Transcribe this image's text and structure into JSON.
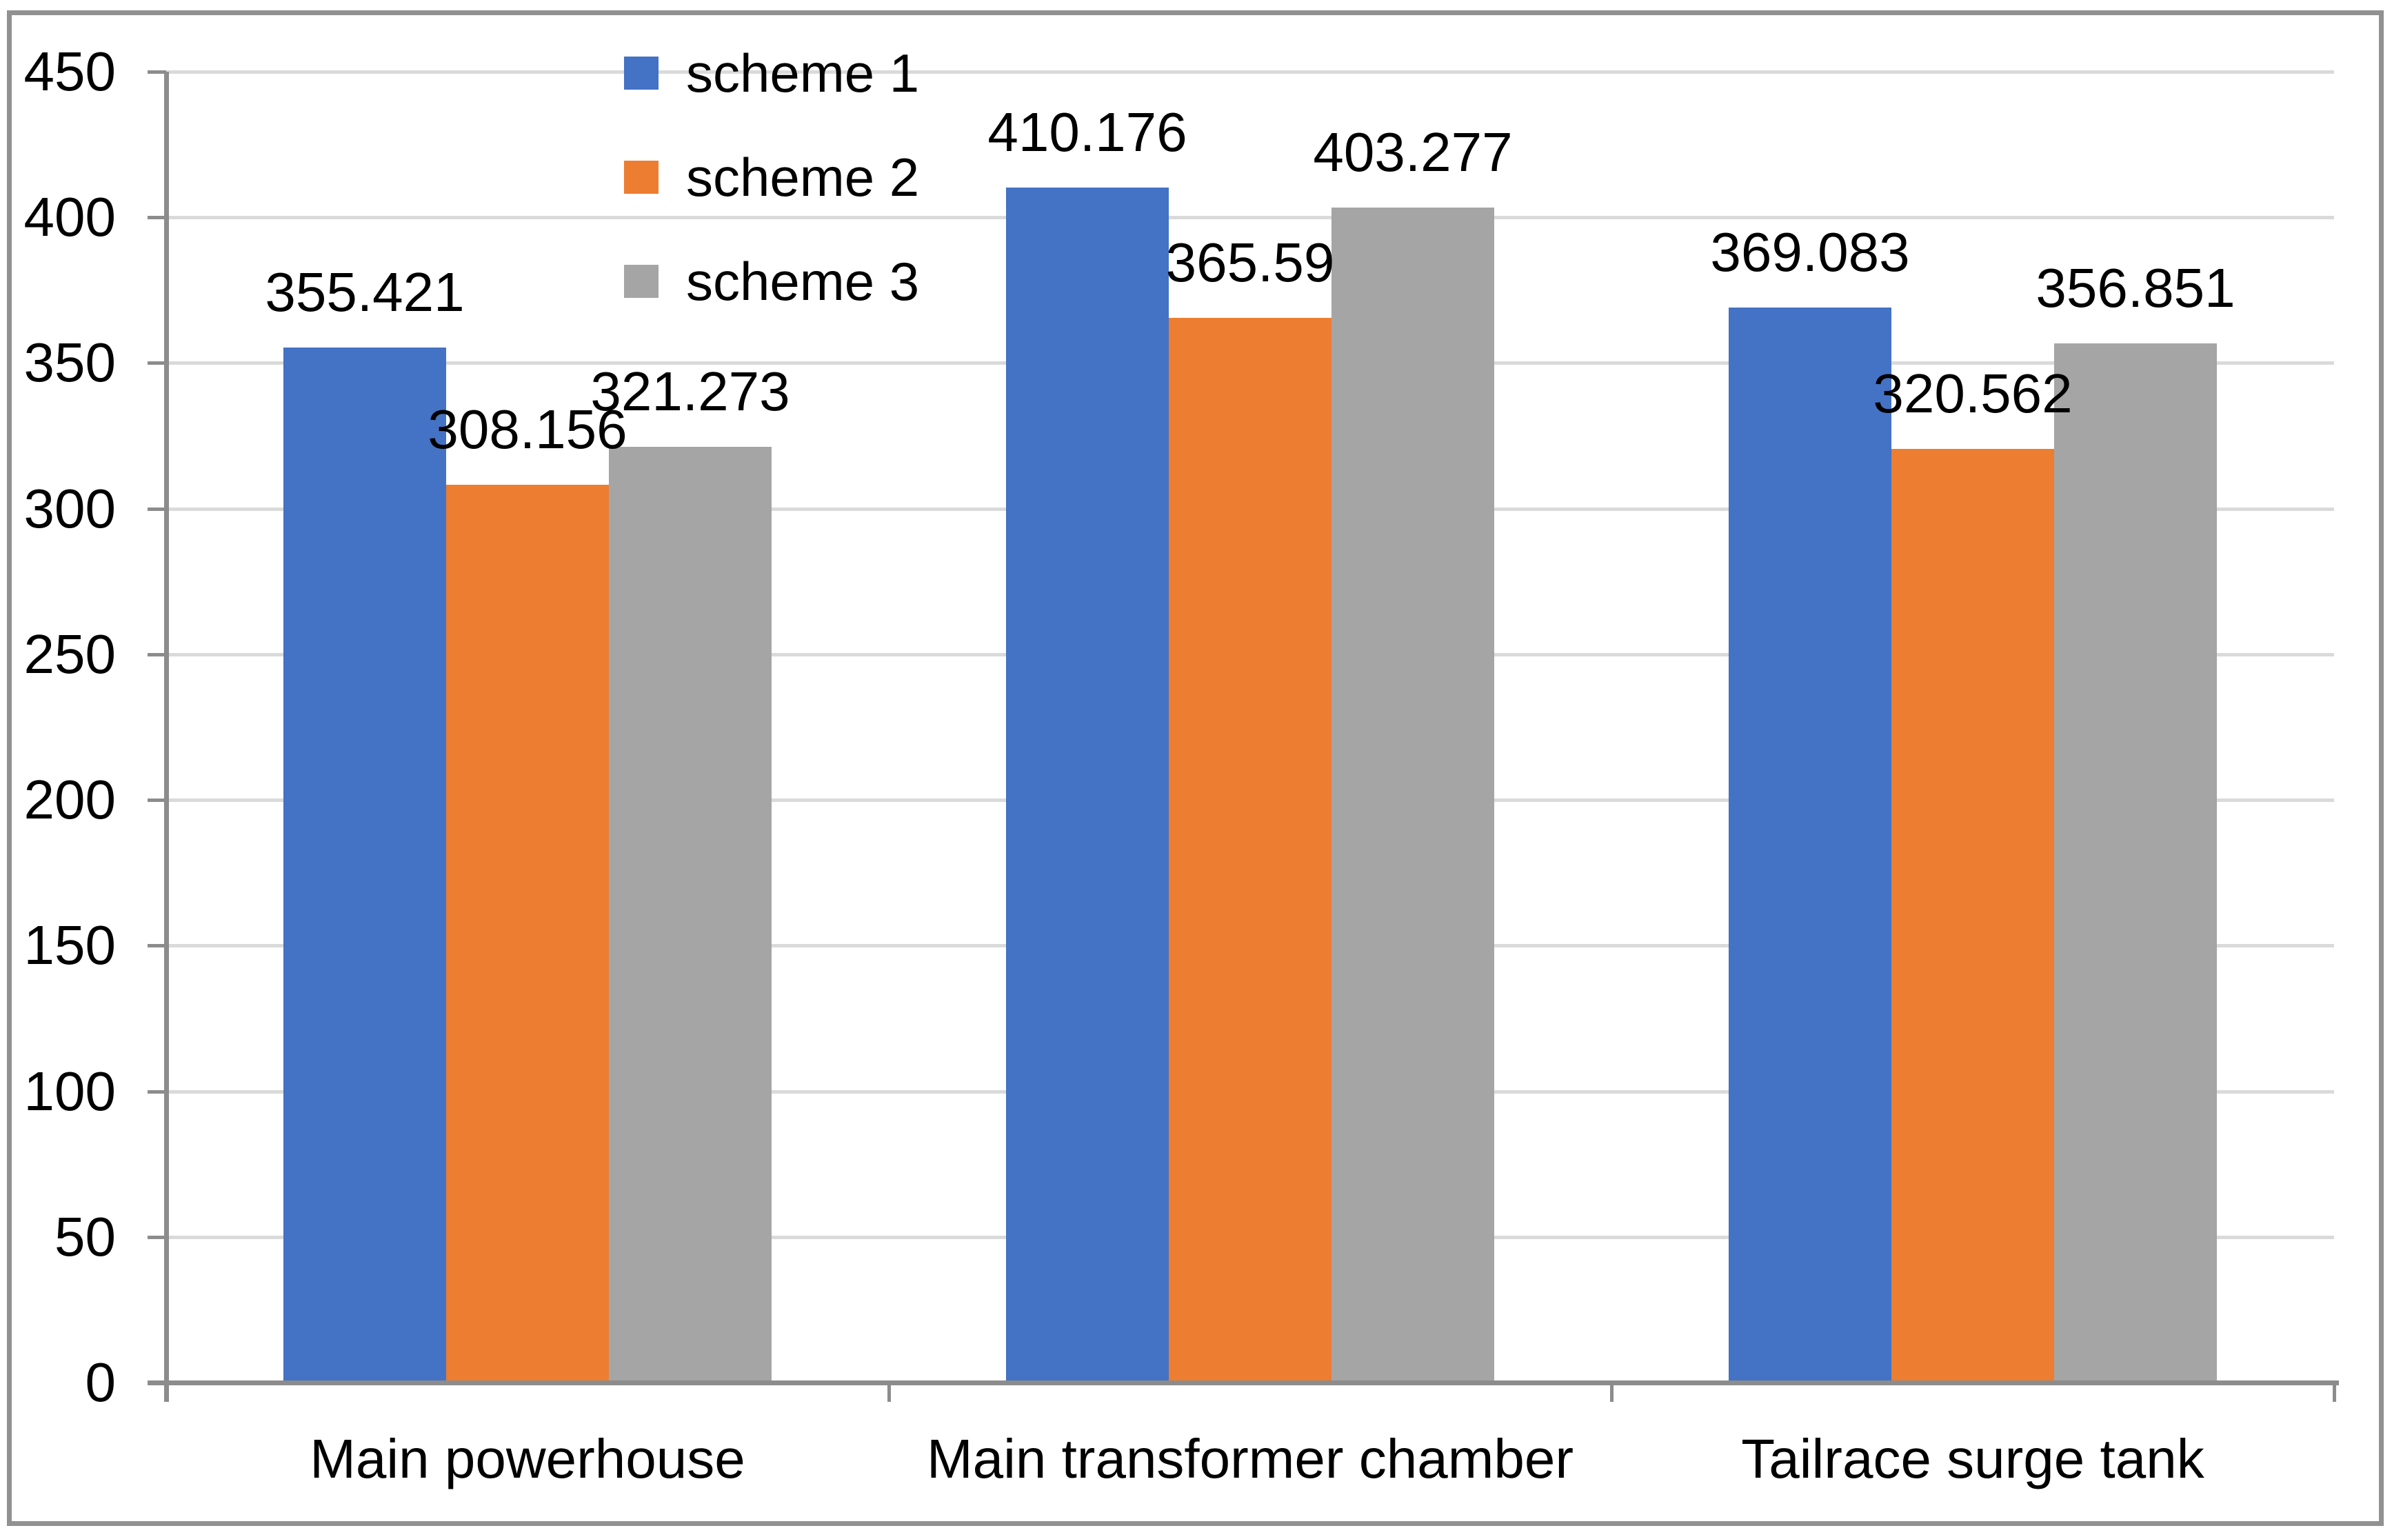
{
  "chart_data": {
    "type": "bar",
    "title": "",
    "categories": [
      "Main powerhouse",
      "Main transformer chamber",
      "Tailrace surge tank"
    ],
    "series": [
      {
        "name": "scheme 1",
        "color": "#4472C4",
        "values": [
          355.421,
          410.176,
          369.083
        ],
        "data_labels": [
          "355.421",
          "410.176",
          "369.083"
        ]
      },
      {
        "name": "scheme 2",
        "color": "#ED7D31",
        "values": [
          308.156,
          365.59,
          320.562
        ],
        "data_labels": [
          "308.156",
          "365.59",
          "320.562"
        ]
      },
      {
        "name": "scheme 3",
        "color": "#A5A5A5",
        "values": [
          321.273,
          403.277,
          356.851
        ],
        "data_labels": [
          "321.273",
          "403.277",
          "356.851"
        ]
      }
    ],
    "y_axis": {
      "min": 0,
      "max": 450,
      "step": 50,
      "tick_labels": [
        "0",
        "50",
        "100",
        "150",
        "200",
        "250",
        "300",
        "350",
        "400",
        "450"
      ]
    },
    "legend": {
      "position": "top-center",
      "orientation": "vertical",
      "entries": [
        "scheme 1",
        "scheme 2",
        "scheme 3"
      ]
    },
    "grid": true,
    "ylim": [
      0,
      450
    ]
  },
  "colors": {
    "background": "#FFFFFF",
    "gridline": "#DADADA",
    "axis": "#8C8C8C",
    "frame_border": "#919191",
    "text": "#000000"
  }
}
